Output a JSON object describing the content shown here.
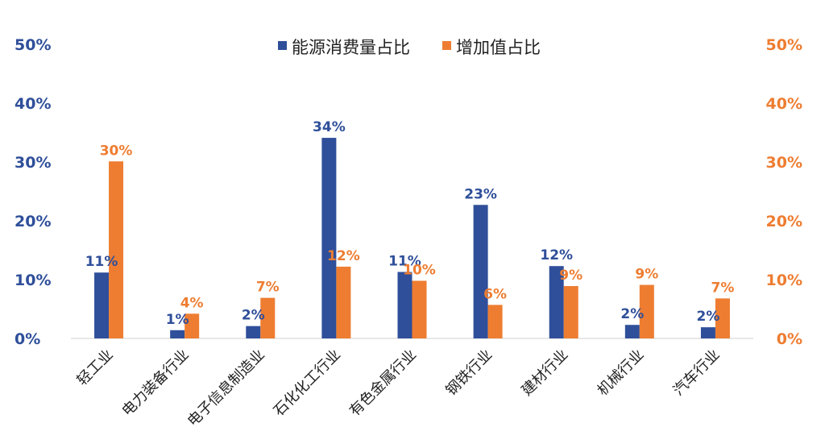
{
  "chart_data": {
    "type": "bar",
    "categories": [
      "轻工业",
      "电力装备行业",
      "电子信息制造业",
      "石化化工行业",
      "有色金属行业",
      "钢铁行业",
      "建材行业",
      "机械行业",
      "汽车行业"
    ],
    "series": [
      {
        "name": "能源消费量占比",
        "values": [
          11.2,
          1.4,
          2.1,
          34.1,
          11.3,
          22.7,
          12.3,
          2.3,
          1.9
        ],
        "labels": [
          "11%",
          "1%",
          "2%",
          "34%",
          "11%",
          "23%",
          "12%",
          "2%",
          "2%"
        ],
        "color": "#2f4f9a",
        "axis": "left"
      },
      {
        "name": "增加值占比",
        "values": [
          30.1,
          4.2,
          6.9,
          12.2,
          9.8,
          5.7,
          8.9,
          9.1,
          6.8
        ],
        "labels": [
          "30%",
          "4%",
          "7%",
          "12%",
          "10%",
          "6%",
          "9%",
          "9%",
          "7%"
        ],
        "color": "#ee7d31",
        "axis": "right"
      }
    ],
    "ylim": [
      0,
      50
    ],
    "yticks": [
      "0%",
      "10%",
      "20%",
      "30%",
      "40%",
      "50%"
    ],
    "y2lim": [
      0,
      50
    ],
    "y2ticks": [
      "0%",
      "10%",
      "20%",
      "30%",
      "40%",
      "50%"
    ],
    "legend_position": "top-center",
    "grid": false
  }
}
